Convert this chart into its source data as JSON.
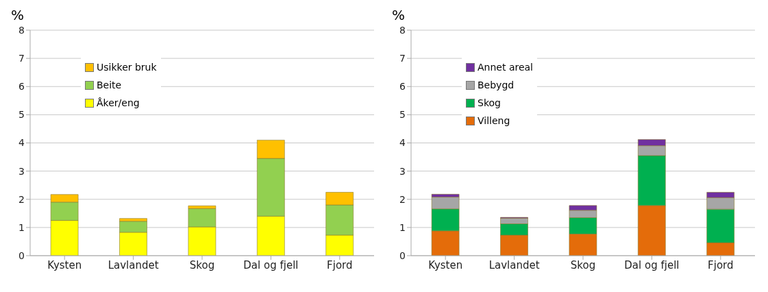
{
  "chart_data": [
    {
      "type": "bar",
      "stacked": true,
      "ylabel": "%",
      "categories": [
        "Kysten",
        "Lavlandet",
        "Skog",
        "Dal og fjell",
        "Fjord"
      ],
      "series": [
        {
          "name": "Åker/eng",
          "color": "#ffff00",
          "values": [
            1.25,
            0.83,
            1.02,
            1.4,
            0.73
          ]
        },
        {
          "name": "Beite",
          "color": "#92d050",
          "values": [
            0.65,
            0.39,
            0.65,
            2.05,
            1.07
          ]
        },
        {
          "name": "Usikker bruk",
          "color": "#ffc000",
          "values": [
            0.27,
            0.1,
            0.1,
            0.65,
            0.45
          ]
        }
      ],
      "ylim": [
        0,
        8
      ],
      "yticks": [
        0,
        1,
        2,
        3,
        4,
        5,
        6,
        7,
        8
      ],
      "grid": "y",
      "legend": "top left"
    },
    {
      "type": "bar",
      "stacked": true,
      "ylabel": "%",
      "categories": [
        "Kysten",
        "Lavlandet",
        "Skog",
        "Dal og fjell",
        "Fjord"
      ],
      "series": [
        {
          "name": "Villeng",
          "color": "#e46c0a",
          "values": [
            0.88,
            0.73,
            0.77,
            1.78,
            0.46
          ]
        },
        {
          "name": "Skog",
          "color": "#00b050",
          "values": [
            0.78,
            0.4,
            0.58,
            1.77,
            1.19
          ]
        },
        {
          "name": "Bebygd",
          "color": "#a6a6a6",
          "values": [
            0.42,
            0.2,
            0.26,
            0.35,
            0.41
          ]
        },
        {
          "name": "Annet areal",
          "color": "#7030a0",
          "values": [
            0.1,
            0.03,
            0.17,
            0.22,
            0.19
          ]
        }
      ],
      "ylim": [
        0,
        8
      ],
      "yticks": [
        0,
        1,
        2,
        3,
        4,
        5,
        6,
        7,
        8
      ],
      "grid": "y",
      "legend": "top left"
    }
  ]
}
